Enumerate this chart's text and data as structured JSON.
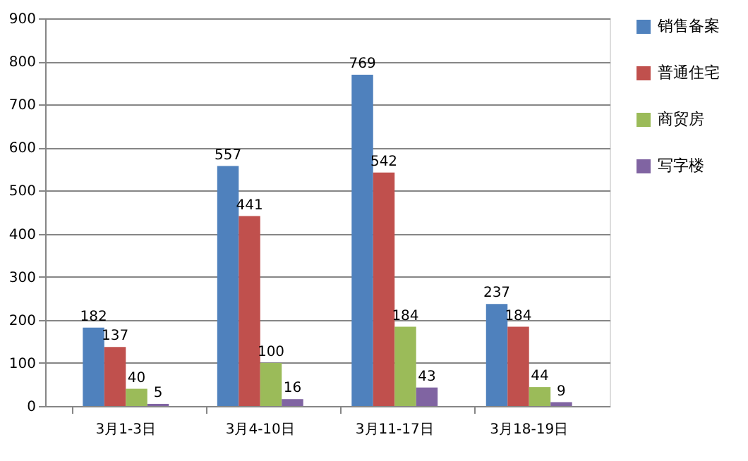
{
  "chart_data": {
    "type": "bar",
    "categories": [
      "3月1-3日",
      "3月4-10日",
      "3月11-17日",
      "3月18-19日"
    ],
    "series": [
      {
        "name": "销售备案",
        "color": "#4f81bd",
        "values": [
          182,
          557,
          769,
          237
        ]
      },
      {
        "name": "普通住宅",
        "color": "#c0504d",
        "values": [
          137,
          441,
          542,
          184
        ]
      },
      {
        "name": "商贸房",
        "color": "#9bbb59",
        "values": [
          40,
          100,
          184,
          44
        ]
      },
      {
        "name": "写字楼",
        "color": "#8064a2",
        "values": [
          5,
          16,
          43,
          9
        ]
      }
    ],
    "ylim": [
      0,
      900
    ],
    "yticks": [
      0,
      100,
      200,
      300,
      400,
      500,
      600,
      700,
      800,
      900
    ],
    "grid": "y",
    "legend": "right",
    "data_labels": true
  }
}
